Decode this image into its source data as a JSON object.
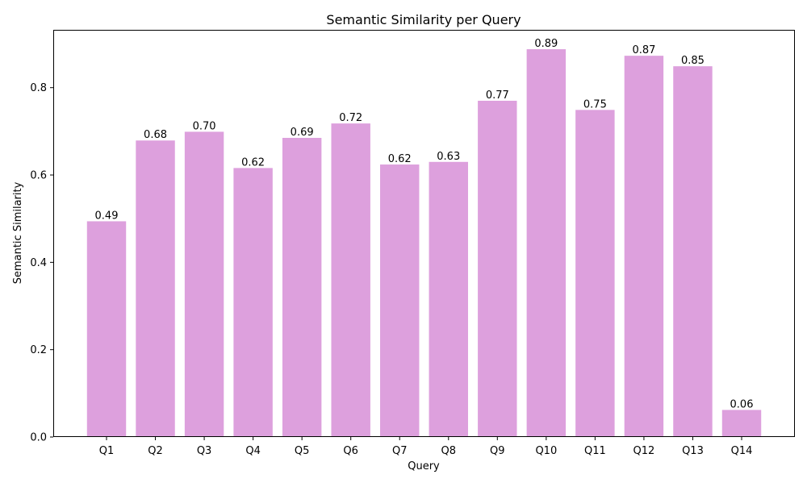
{
  "colors": {
    "bar": "#DDA0DD",
    "axis": "#000000",
    "background": "#ffffff"
  },
  "chart_data": {
    "type": "bar",
    "title": "Semantic Similarity per Query",
    "xlabel": "Query",
    "ylabel": "Semantic Similarity",
    "categories": [
      "Q1",
      "Q2",
      "Q3",
      "Q4",
      "Q5",
      "Q6",
      "Q7",
      "Q8",
      "Q9",
      "Q10",
      "Q11",
      "Q12",
      "Q13",
      "Q14"
    ],
    "values": [
      0.494,
      0.679,
      0.699,
      0.616,
      0.685,
      0.718,
      0.624,
      0.63,
      0.77,
      0.888,
      0.749,
      0.873,
      0.849,
      0.062
    ],
    "data_labels": [
      "0.49",
      "0.68",
      "0.70",
      "0.62",
      "0.69",
      "0.72",
      "0.62",
      "0.63",
      "0.77",
      "0.89",
      "0.75",
      "0.87",
      "0.85",
      "0.06"
    ],
    "yticks": [
      0.0,
      0.2,
      0.4,
      0.6,
      0.8
    ],
    "ytick_labels": [
      "0.0",
      "0.2",
      "0.4",
      "0.6",
      "0.8"
    ],
    "ylim": [
      0,
      0.9324
    ],
    "grid": false,
    "legend": "none"
  }
}
